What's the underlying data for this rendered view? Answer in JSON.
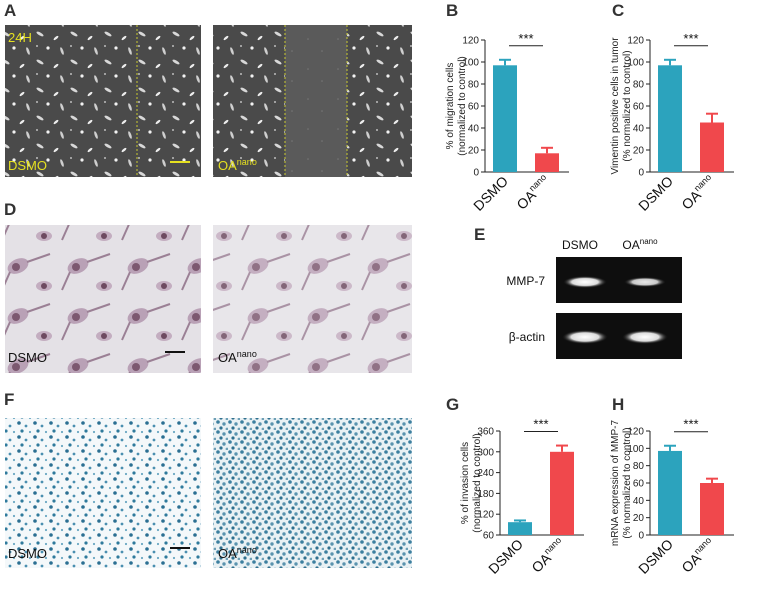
{
  "chart_data": [
    {
      "type": "bar",
      "panel": "B",
      "categories": [
        "DSMO",
        "OA"
      ],
      "category_superscripts": [
        null,
        "nano"
      ],
      "values": [
        97,
        17
      ],
      "errors": [
        5,
        5
      ],
      "colors": [
        "#2ca3bd",
        "#f0484c"
      ],
      "ylabel": [
        "% of migration cells",
        "(normalized to control)"
      ],
      "ylim": [
        0,
        120
      ],
      "yticks": [
        0,
        20,
        40,
        60,
        80,
        100,
        120
      ],
      "annotation": "***"
    },
    {
      "type": "bar",
      "panel": "C",
      "categories": [
        "DSMO",
        "OA"
      ],
      "category_superscripts": [
        null,
        "nano"
      ],
      "values": [
        97,
        45
      ],
      "errors": [
        5,
        8
      ],
      "colors": [
        "#2ca3bd",
        "#f0484c"
      ],
      "ylabel": [
        "Vimentin positive cells in tumor",
        "(% normalized to control)"
      ],
      "ylim": [
        0,
        120
      ],
      "yticks": [
        0,
        20,
        40,
        60,
        80,
        100,
        120
      ],
      "annotation": "***"
    },
    {
      "type": "bar",
      "panel": "G",
      "categories": [
        "DSMO",
        "OA"
      ],
      "category_superscripts": [
        null,
        "nano"
      ],
      "values": [
        97,
        300
      ],
      "errors": [
        5,
        18
      ],
      "colors": [
        "#2ca3bd",
        "#f0484c"
      ],
      "ylabel": [
        "% of invasion cells",
        "(normalized to control)"
      ],
      "ylim": [
        60,
        360
      ],
      "yticks": [
        60,
        120,
        180,
        240,
        300,
        360
      ],
      "annotation": "***"
    },
    {
      "type": "bar",
      "panel": "H",
      "categories": [
        "DSMO",
        "OA"
      ],
      "category_superscripts": [
        null,
        "nano"
      ],
      "values": [
        97,
        60
      ],
      "errors": [
        6,
        5
      ],
      "colors": [
        "#2ca3bd",
        "#f0484c"
      ],
      "ylabel": [
        "mRNA expression of MMP-7",
        "(% normalized to control)"
      ],
      "ylim": [
        0,
        120
      ],
      "yticks": [
        0,
        20,
        40,
        60,
        80,
        100,
        120
      ],
      "annotation": "***"
    }
  ],
  "panels": {
    "A": {
      "letter": "A",
      "time": "24H",
      "left_label": "DSMO",
      "right_label": "OA",
      "right_label_sup": "nano"
    },
    "D": {
      "letter": "D",
      "left_label": "DSMO",
      "right_label": "OA",
      "right_label_sup": "nano"
    },
    "E": {
      "letter": "E",
      "columns": [
        "DSMO",
        "OA"
      ],
      "column_superscripts": [
        null,
        "nano"
      ],
      "rows": [
        "MMP-7",
        "β-actin"
      ]
    },
    "F": {
      "letter": "F",
      "left_label": "DSMO",
      "right_label": "OA",
      "right_label_sup": "nano"
    }
  }
}
